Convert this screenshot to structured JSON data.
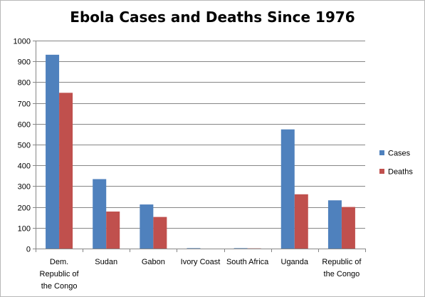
{
  "chart_data": {
    "type": "bar",
    "title": "Ebola Cases and Deaths Since 1976",
    "categories": [
      [
        "Dem.",
        "Republic of",
        "the Congo"
      ],
      [
        "Sudan"
      ],
      [
        "Gabon"
      ],
      [
        "Ivory Coast"
      ],
      [
        "South Africa"
      ],
      [
        "Uganda"
      ],
      [
        "Republic of",
        "the Congo"
      ]
    ],
    "series": [
      {
        "name": "Cases",
        "color": "#4F81BD",
        "values": [
          932,
          334,
          212,
          2,
          2,
          573,
          232
        ]
      },
      {
        "name": "Deaths",
        "color": "#C0504D",
        "values": [
          749,
          178,
          152,
          0,
          1,
          261,
          200
        ]
      }
    ],
    "ylim": [
      0,
      1000
    ],
    "yticks": [
      "0",
      "100",
      "200",
      "300",
      "400",
      "500",
      "600",
      "700",
      "800",
      "900",
      "1000"
    ],
    "grid": true,
    "legend": "right"
  }
}
